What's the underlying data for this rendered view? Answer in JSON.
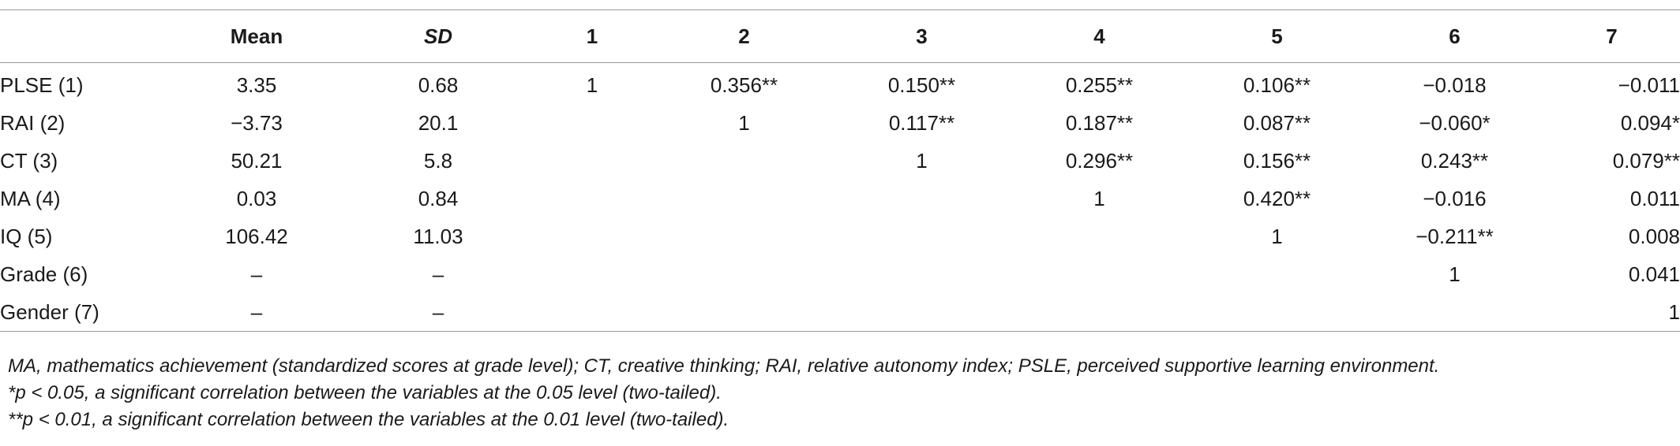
{
  "table": {
    "columns": [
      "",
      "Mean",
      "SD",
      "1",
      "2",
      "3",
      "4",
      "5",
      "6",
      "7"
    ],
    "rows": [
      {
        "label": "PLSE (1)",
        "cells": [
          "3.35",
          "0.68",
          "1",
          "0.356**",
          "0.150**",
          "0.255**",
          "0.106**",
          "−0.018",
          "−0.011"
        ]
      },
      {
        "label": "RAI (2)",
        "cells": [
          "−3.73",
          "20.1",
          "",
          "1",
          "0.117**",
          "0.187**",
          "0.087**",
          "−0.060*",
          "0.094*"
        ]
      },
      {
        "label": "CT (3)",
        "cells": [
          "50.21",
          "5.8",
          "",
          "",
          "1",
          "0.296**",
          "0.156**",
          "0.243**",
          "0.079**"
        ]
      },
      {
        "label": "MA (4)",
        "cells": [
          "0.03",
          "0.84",
          "",
          "",
          "",
          "1",
          "0.420**",
          "−0.016",
          "0.011"
        ]
      },
      {
        "label": "IQ (5)",
        "cells": [
          "106.42",
          "11.03",
          "",
          "",
          "",
          "",
          "1",
          "−0.211**",
          "0.008"
        ]
      },
      {
        "label": "Grade (6)",
        "cells": [
          "–",
          "–",
          "",
          "",
          "",
          "",
          "",
          "1",
          "0.041"
        ]
      },
      {
        "label": "Gender (7)",
        "cells": [
          "–",
          "–",
          "",
          "",
          "",
          "",
          "",
          "",
          "1"
        ]
      }
    ]
  },
  "notes": [
    "MA, mathematics achievement (standardized scores at grade level); CT, creative thinking; RAI, relative autonomy index; PSLE, perceived supportive learning environment.",
    "*p < 0.05, a significant correlation between the variables at the 0.05 level (two-tailed).",
    "**p < 0.01, a significant correlation between the variables at the 0.01 level (two-tailed)."
  ]
}
